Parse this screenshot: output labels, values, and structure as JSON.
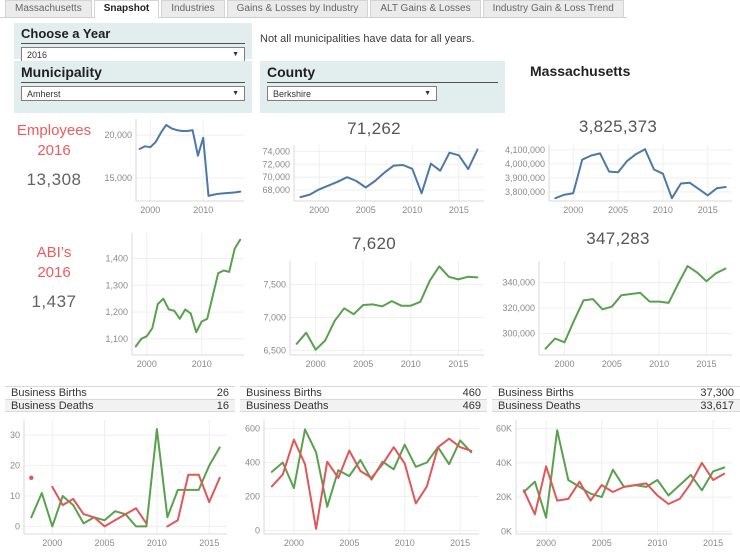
{
  "tabs": {
    "items": [
      {
        "label": "Massachusetts",
        "active": false
      },
      {
        "label": "Snapshot",
        "active": true
      },
      {
        "label": "Industries",
        "active": false
      },
      {
        "label": "Gains & Losses by Industry",
        "active": false
      },
      {
        "label": "ALT Gains & Losses",
        "active": false
      },
      {
        "label": "Industry Gain & Loss Trend",
        "active": false
      }
    ]
  },
  "filters": {
    "year": {
      "title": "Choose a Year",
      "value": "2016"
    },
    "note": "Not all municipalities have data for all years.",
    "municipality": {
      "title": "Municipality",
      "value": "Amherst"
    },
    "county": {
      "title": "County",
      "value": "Berkshire"
    },
    "state_title": "Massachusetts"
  },
  "metrics": {
    "employees": {
      "label": "Employees",
      "year": "2016",
      "municipality_value": "13,308",
      "county_value": "71,262",
      "state_value": "3,825,373"
    },
    "abi": {
      "label": "ABI’s",
      "year": "2016",
      "municipality_value": "1,437",
      "county_value": "7,620",
      "state_value": "347,283"
    }
  },
  "tables": {
    "births_label": "Business Births",
    "deaths_label": "Business Deaths",
    "municipality": {
      "births": "26",
      "deaths": "16"
    },
    "county": {
      "births": "460",
      "deaths": "469"
    },
    "state": {
      "births": "37,300",
      "deaths": "33,617"
    }
  },
  "colors": {
    "blue": "#4e79a7",
    "green": "#59a14f",
    "red": "#e15759",
    "accent_red_text": "#ee5a5e",
    "value_gray": "#555555",
    "card_bg": "#e2edee",
    "axis_text": "#8a8a8a",
    "gridline": "#efefef",
    "axis_line": "#d9d9d9"
  },
  "chart_data": [
    {
      "id": "emp-muni",
      "type": "line",
      "x_start": 1998,
      "xlim": [
        1997.3,
        2017.7
      ],
      "ylim": [
        12300,
        21900
      ],
      "yticks": [
        {
          "v": 15000,
          "label": "15,000"
        },
        {
          "v": 20000,
          "label": "20,000"
        }
      ],
      "xticks": [
        {
          "v": 2000,
          "label": "2000"
        },
        {
          "v": 2010,
          "label": "2010"
        }
      ],
      "series": [
        {
          "name": "Employees",
          "color": "blue",
          "values": [
            18400,
            18700,
            18600,
            19200,
            20300,
            21200,
            20800,
            20600,
            20500,
            20500,
            20600,
            17600,
            19700,
            12900,
            13050,
            13150,
            13200,
            13250,
            13308,
            13400
          ]
        }
      ]
    },
    {
      "id": "emp-county",
      "type": "line",
      "x_start": 1998,
      "xlim": [
        1997.3,
        2017.7
      ],
      "ylim": [
        66300,
        75000
      ],
      "yticks": [
        {
          "v": 68000,
          "label": "68,000"
        },
        {
          "v": 70000,
          "label": "70,000"
        },
        {
          "v": 72000,
          "label": "72,000"
        },
        {
          "v": 74000,
          "label": "74,000"
        }
      ],
      "xticks": [
        {
          "v": 2000,
          "label": "2000"
        },
        {
          "v": 2005,
          "label": "2005"
        },
        {
          "v": 2010,
          "label": "2010"
        },
        {
          "v": 2015,
          "label": "2015"
        }
      ],
      "series": [
        {
          "name": "Employees",
          "color": "blue",
          "values": [
            66900,
            67300,
            68100,
            68700,
            69300,
            70000,
            69400,
            68400,
            69400,
            70700,
            71800,
            71900,
            71300,
            67500,
            72100,
            71000,
            73800,
            73400,
            71262,
            74300
          ]
        }
      ]
    },
    {
      "id": "emp-state",
      "type": "line",
      "x_start": 1998,
      "xlim": [
        1997.3,
        2017.7
      ],
      "ylim": [
        3735000,
        4135000
      ],
      "yticks": [
        {
          "v": 3800000,
          "label": "3,800,000"
        },
        {
          "v": 3900000,
          "label": "3,900,000"
        },
        {
          "v": 4000000,
          "label": "4,000,000"
        },
        {
          "v": 4100000,
          "label": "4,100,000"
        }
      ],
      "xticks": [
        {
          "v": 2000,
          "label": "2000"
        },
        {
          "v": 2005,
          "label": "2005"
        },
        {
          "v": 2010,
          "label": "2010"
        },
        {
          "v": 2015,
          "label": "2015"
        }
      ],
      "series": [
        {
          "name": "Employees",
          "color": "blue",
          "values": [
            3755000,
            3780000,
            3790000,
            4030000,
            4060000,
            4075000,
            3945000,
            3940000,
            4020000,
            4070000,
            4105000,
            3960000,
            3930000,
            3755000,
            3860000,
            3865000,
            3820000,
            3775000,
            3825373,
            3835000
          ]
        }
      ]
    },
    {
      "id": "abi-muni",
      "type": "line",
      "x_start": 1998,
      "xlim": [
        1997.3,
        2017.7
      ],
      "ylim": [
        1040,
        1495
      ],
      "yticks": [
        {
          "v": 1100,
          "label": "1,100"
        },
        {
          "v": 1200,
          "label": "1,200"
        },
        {
          "v": 1300,
          "label": "1,300"
        },
        {
          "v": 1400,
          "label": "1,400"
        }
      ],
      "xticks": [
        {
          "v": 2000,
          "label": "2000"
        },
        {
          "v": 2010,
          "label": "2010"
        }
      ],
      "series": [
        {
          "name": "ABI’s",
          "color": "green",
          "values": [
            1072,
            1100,
            1110,
            1140,
            1230,
            1250,
            1210,
            1205,
            1175,
            1210,
            1195,
            1125,
            1165,
            1175,
            1260,
            1345,
            1355,
            1350,
            1437,
            1470
          ]
        }
      ]
    },
    {
      "id": "abi-county",
      "type": "line",
      "x_start": 1998,
      "xlim": [
        1997.3,
        2017.7
      ],
      "ylim": [
        6430,
        7860
      ],
      "yticks": [
        {
          "v": 6500,
          "label": "6,500"
        },
        {
          "v": 7000,
          "label": "7,000"
        },
        {
          "v": 7500,
          "label": "7,500"
        }
      ],
      "xticks": [
        {
          "v": 2000,
          "label": "2000"
        },
        {
          "v": 2005,
          "label": "2005"
        },
        {
          "v": 2010,
          "label": "2010"
        },
        {
          "v": 2015,
          "label": "2015"
        }
      ],
      "series": [
        {
          "name": "ABI’s",
          "color": "green",
          "values": [
            6600,
            6770,
            6510,
            6650,
            6950,
            7140,
            7050,
            7190,
            7200,
            7170,
            7250,
            7180,
            7180,
            7240,
            7560,
            7780,
            7620,
            7580,
            7620,
            7610
          ]
        }
      ]
    },
    {
      "id": "abi-state",
      "type": "line",
      "x_start": 1998,
      "xlim": [
        1997.3,
        2017.7
      ],
      "ylim": [
        283000,
        357000
      ],
      "yticks": [
        {
          "v": 300000,
          "label": "300,000"
        },
        {
          "v": 320000,
          "label": "320,000"
        },
        {
          "v": 340000,
          "label": "340,000"
        }
      ],
      "xticks": [
        {
          "v": 2000,
          "label": "2000"
        },
        {
          "v": 2005,
          "label": "2005"
        },
        {
          "v": 2010,
          "label": "2010"
        },
        {
          "v": 2015,
          "label": "2015"
        }
      ],
      "series": [
        {
          "name": "ABI’s",
          "color": "green",
          "values": [
            288000,
            296000,
            293000,
            310000,
            326000,
            327000,
            319000,
            321000,
            330000,
            331000,
            332000,
            325000,
            325000,
            324000,
            339000,
            353000,
            348000,
            341000,
            347283,
            351000
          ]
        }
      ]
    },
    {
      "id": "bd-muni",
      "type": "line",
      "x_start": 1998,
      "xlim": [
        1997.3,
        2016.7
      ],
      "ylim": [
        -2.5,
        35
      ],
      "yticks": [
        {
          "v": 0,
          "label": "0"
        },
        {
          "v": 10,
          "label": "10"
        },
        {
          "v": 20,
          "label": "20"
        },
        {
          "v": 30,
          "label": "30"
        }
      ],
      "xticks": [
        {
          "v": 2000,
          "label": "2000"
        },
        {
          "v": 2005,
          "label": "2005"
        },
        {
          "v": 2010,
          "label": "2010"
        },
        {
          "v": 2015,
          "label": "2015"
        }
      ],
      "series": [
        {
          "name": "Business Births",
          "color": "green",
          "values": [
            3,
            11,
            0,
            10,
            7,
            1,
            3,
            2,
            5,
            4,
            0,
            0,
            32,
            3,
            12,
            12,
            12,
            20,
            26
          ]
        },
        {
          "name": "Business Deaths",
          "color": "red",
          "values": [
            16,
            null,
            13,
            7,
            9,
            4,
            3,
            0,
            2,
            4,
            6,
            1,
            null,
            0,
            2,
            17,
            17,
            8,
            16
          ]
        }
      ]
    },
    {
      "id": "bd-county",
      "type": "line",
      "x_start": 1998,
      "xlim": [
        1997.3,
        2016.7
      ],
      "ylim": [
        -20,
        650
      ],
      "yticks": [
        {
          "v": 0,
          "label": "0"
        },
        {
          "v": 200,
          "label": "200"
        },
        {
          "v": 400,
          "label": "400"
        },
        {
          "v": 600,
          "label": "600"
        }
      ],
      "xticks": [
        {
          "v": 2000,
          "label": "2000"
        },
        {
          "v": 2005,
          "label": "2005"
        },
        {
          "v": 2010,
          "label": "2010"
        },
        {
          "v": 2015,
          "label": "2015"
        }
      ],
      "series": [
        {
          "name": "Business Births",
          "color": "green",
          "values": [
            345,
            400,
            250,
            595,
            460,
            140,
            355,
            320,
            415,
            300,
            405,
            360,
            505,
            375,
            400,
            490,
            390,
            530,
            460
          ]
        },
        {
          "name": "Business Deaths",
          "color": "red",
          "values": [
            260,
            330,
            535,
            390,
            10,
            405,
            310,
            470,
            350,
            310,
            390,
            490,
            395,
            160,
            260,
            490,
            540,
            490,
            469
          ]
        }
      ]
    },
    {
      "id": "bd-state",
      "type": "line",
      "x_start": 1998,
      "xlim": [
        1997.3,
        2016.7
      ],
      "ylim": [
        -1500,
        65000
      ],
      "yticks": [
        {
          "v": 0,
          "label": "0K"
        },
        {
          "v": 20000,
          "label": "20K"
        },
        {
          "v": 40000,
          "label": "40K"
        },
        {
          "v": 60000,
          "label": "60K"
        }
      ],
      "xticks": [
        {
          "v": 2000,
          "label": "2000"
        },
        {
          "v": 2005,
          "label": "2005"
        },
        {
          "v": 2010,
          "label": "2010"
        },
        {
          "v": 2015,
          "label": "2015"
        }
      ],
      "series": [
        {
          "name": "Business Births",
          "color": "green",
          "values": [
            23000,
            29000,
            8000,
            59000,
            30000,
            26000,
            22000,
            20000,
            36000,
            26000,
            27000,
            26000,
            30000,
            21000,
            27000,
            33000,
            24000,
            35000,
            37300
          ]
        },
        {
          "name": "Business Deaths",
          "color": "red",
          "values": [
            24000,
            10000,
            38000,
            18000,
            19000,
            29000,
            18000,
            27000,
            23000,
            26000,
            27000,
            28000,
            21000,
            16000,
            19000,
            28000,
            40000,
            30000,
            33617
          ]
        }
      ]
    }
  ]
}
